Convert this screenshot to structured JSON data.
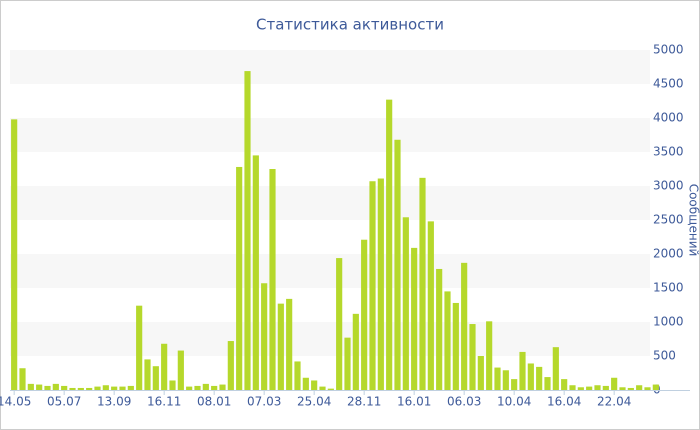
{
  "chart_data": {
    "type": "bar",
    "title": "Статистика активности",
    "y_label": "Сообщений",
    "categories": [
      "14.05",
      null,
      null,
      null,
      null,
      null,
      "05.07",
      null,
      null,
      null,
      null,
      null,
      "13.09",
      null,
      null,
      null,
      null,
      null,
      "16.11",
      null,
      null,
      null,
      null,
      null,
      "08.01",
      null,
      null,
      null,
      null,
      null,
      "07.03",
      null,
      null,
      null,
      null,
      null,
      "25.04",
      null,
      null,
      null,
      null,
      null,
      "28.11",
      null,
      null,
      null,
      null,
      null,
      "16.01",
      null,
      null,
      null,
      null,
      null,
      "06.03",
      null,
      null,
      null,
      null,
      null,
      "10.04",
      null,
      null,
      null,
      null,
      null,
      "16.04",
      null,
      null,
      null,
      null,
      null,
      "22.04",
      null,
      null,
      null,
      null,
      null
    ],
    "values": [
      3980,
      320,
      90,
      80,
      60,
      90,
      60,
      30,
      30,
      30,
      50,
      70,
      50,
      50,
      60,
      1240,
      450,
      350,
      680,
      140,
      580,
      50,
      60,
      90,
      60,
      80,
      720,
      3280,
      4690,
      3450,
      1570,
      3250,
      1270,
      1340,
      420,
      180,
      140,
      50,
      20,
      1940,
      770,
      1120,
      2210,
      3070,
      3110,
      4270,
      3680,
      2540,
      2090,
      3120,
      2480,
      1780,
      1450,
      1280,
      1870,
      970,
      500,
      1010,
      330,
      290,
      160,
      560,
      390,
      340,
      190,
      630,
      160,
      70,
      40,
      50,
      70,
      60,
      180,
      40,
      30,
      70,
      40,
      80
    ],
    "color": "#b5d82b",
    "ylim": [
      0,
      5000
    ],
    "yticks": [
      0,
      500,
      1000,
      1500,
      2000,
      2500,
      3000,
      3500,
      4000,
      4500,
      5000
    ],
    "grid": true
  }
}
